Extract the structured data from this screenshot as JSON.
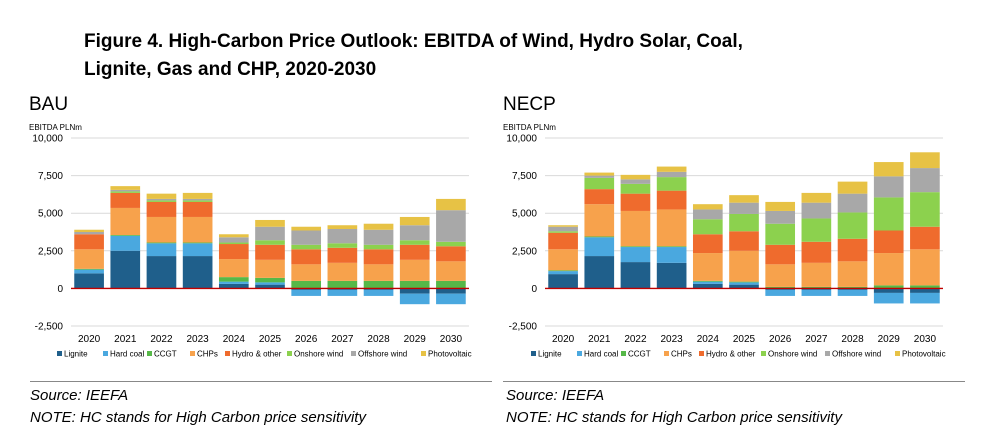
{
  "figure_title": "Figure 4. High-Carbon Price Outlook: EBITDA of Wind, Hydro Solar, Coal, Lignite, Gas and CHP, 2020-2030",
  "colors": {
    "Lignite": "#1f5f8b",
    "Hard coal": "#4aa8df",
    "CCGT": "#56b848",
    "CHPs": "#f7a24c",
    "Hydro & other": "#ef6b2d",
    "Onshore wind": "#8cd14e",
    "Offshore wind": "#a8a8a8",
    "Photovoltaic": "#e7c245",
    "zero_line": "#c00000",
    "gridline": "#d9d9d9"
  },
  "footer": {
    "left_source": "Source: IEEFA",
    "left_note": "NOTE: HC stands for High Carbon price sensitivity",
    "right_source": "Source: IEEFA",
    "right_note": "NOTE: HC stands for High Carbon price sensitivity"
  },
  "chart_data": [
    {
      "type": "bar",
      "stacked": true,
      "title": "BAU",
      "ylabel": "EBITDA PLNm",
      "ylim": [
        -2500,
        10000
      ],
      "yticks": [
        10000,
        7500,
        5000,
        2500,
        0,
        -2500
      ],
      "ytick_labels": [
        "10,000",
        "7,500",
        "5,000",
        "2,500",
        "0",
        "-2,500"
      ],
      "grid": true,
      "legend_position": "bottom",
      "categories": [
        "2020",
        "2021",
        "2022",
        "2023",
        "2024",
        "2025",
        "2026",
        "2027",
        "2028",
        "2029",
        "2030"
      ],
      "series": [
        {
          "name": "Lignite",
          "values": [
            1000,
            2500,
            2150,
            2150,
            300,
            250,
            -100,
            -100,
            -100,
            -350,
            -350
          ]
        },
        {
          "name": "Hard coal",
          "values": [
            250,
            1000,
            850,
            850,
            150,
            150,
            -400,
            -400,
            -400,
            -700,
            -700
          ]
        },
        {
          "name": "CCGT",
          "values": [
            50,
            50,
            50,
            50,
            300,
            300,
            500,
            500,
            500,
            500,
            500
          ]
        },
        {
          "name": "CHPs",
          "values": [
            1300,
            1800,
            1700,
            1700,
            1200,
            1200,
            1100,
            1200,
            1100,
            1400,
            1300
          ]
        },
        {
          "name": "Hydro & other",
          "values": [
            1000,
            1000,
            1000,
            1000,
            1000,
            1000,
            1000,
            1000,
            1000,
            1000,
            1000
          ]
        },
        {
          "name": "Onshore wind",
          "values": [
            0,
            100,
            100,
            100,
            100,
            300,
            300,
            300,
            300,
            300,
            300
          ]
        },
        {
          "name": "Offshore wind",
          "values": [
            150,
            100,
            100,
            100,
            350,
            900,
            950,
            950,
            1000,
            1000,
            2100
          ]
        },
        {
          "name": "Photovoltaic",
          "values": [
            150,
            250,
            350,
            400,
            200,
            450,
            250,
            250,
            400,
            550,
            750
          ]
        }
      ]
    },
    {
      "type": "bar",
      "stacked": true,
      "title": "NECP",
      "ylabel": "EBITDA PLNm",
      "ylim": [
        -2500,
        10000
      ],
      "yticks": [
        10000,
        7500,
        5000,
        2500,
        0,
        -2500
      ],
      "ytick_labels": [
        "10,000",
        "7,500",
        "5,000",
        "2,500",
        "0",
        "-2,500"
      ],
      "grid": true,
      "legend_position": "bottom",
      "categories": [
        "2020",
        "2021",
        "2022",
        "2023",
        "2024",
        "2025",
        "2026",
        "2027",
        "2028",
        "2029",
        "2030"
      ],
      "series": [
        {
          "name": "Lignite",
          "values": [
            950,
            2150,
            1750,
            1700,
            300,
            250,
            -100,
            -100,
            -100,
            -300,
            -300
          ]
        },
        {
          "name": "Hard coal",
          "values": [
            200,
            1250,
            1000,
            1050,
            150,
            150,
            -400,
            -400,
            -400,
            -700,
            -700
          ]
        },
        {
          "name": "CCGT",
          "values": [
            50,
            50,
            50,
            50,
            50,
            50,
            100,
            100,
            100,
            200,
            200
          ]
        },
        {
          "name": "CHPs",
          "values": [
            1400,
            2150,
            2350,
            2450,
            1850,
            2050,
            1500,
            1600,
            1700,
            2150,
            2400
          ]
        },
        {
          "name": "Hydro & other",
          "values": [
            1100,
            1000,
            1150,
            1250,
            1250,
            1300,
            1300,
            1400,
            1500,
            1500,
            1500
          ]
        },
        {
          "name": "Onshore wind",
          "values": [
            100,
            750,
            650,
            900,
            1000,
            1150,
            1400,
            1550,
            1750,
            2200,
            2300
          ]
        },
        {
          "name": "Offshore wind",
          "values": [
            300,
            150,
            300,
            350,
            650,
            750,
            850,
            1050,
            1250,
            1400,
            1600
          ]
        },
        {
          "name": "Photovoltaic",
          "values": [
            100,
            200,
            300,
            350,
            350,
            500,
            600,
            650,
            800,
            950,
            1050
          ]
        }
      ]
    }
  ]
}
